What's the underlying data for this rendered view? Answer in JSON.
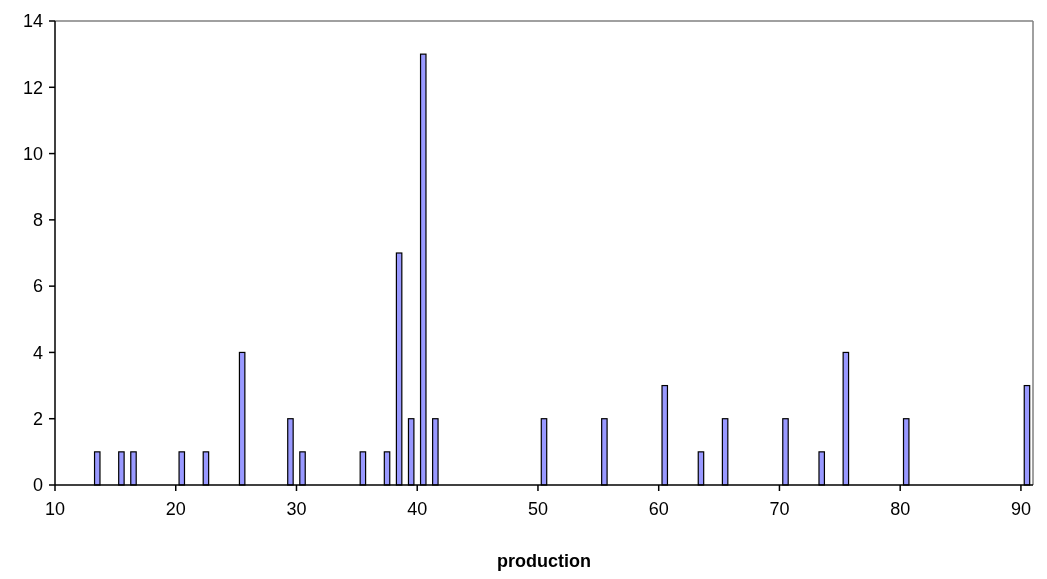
{
  "chart_data": {
    "type": "bar",
    "xlabel": "production",
    "x": [
      13.5,
      15.5,
      16.5,
      20.5,
      22.5,
      25.5,
      29.5,
      30.5,
      35.5,
      37.5,
      38.5,
      39.5,
      40.5,
      41.5,
      50.5,
      55.5,
      60.5,
      63.5,
      65.5,
      70.5,
      73.5,
      75.5,
      80.5,
      90.5
    ],
    "values": [
      1,
      1,
      1,
      1,
      1,
      4,
      2,
      1,
      1,
      1,
      7,
      2,
      13,
      2,
      2,
      2,
      3,
      1,
      2,
      2,
      1,
      4,
      2,
      3
    ],
    "color": "#9999ff",
    "xlim": [
      10,
      91
    ],
    "xticks": [
      10,
      20,
      30,
      40,
      50,
      60,
      70,
      80,
      90
    ],
    "ylim": [
      0,
      14
    ],
    "yticks": [
      0,
      2,
      4,
      6,
      8,
      10,
      12,
      14
    ]
  }
}
